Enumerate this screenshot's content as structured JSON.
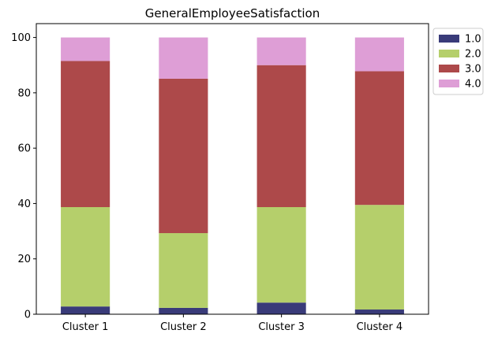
{
  "chart_data": {
    "type": "bar",
    "stacked": true,
    "title": "GeneralEmployeeSatisfaction",
    "xlabel": "",
    "ylabel": "",
    "categories": [
      "Cluster 1",
      "Cluster 2",
      "Cluster 3",
      "Cluster 4"
    ],
    "ylim": [
      0,
      105
    ],
    "yticks": [
      0,
      20,
      40,
      60,
      80,
      100
    ],
    "grid": false,
    "legend_position": "outside-top-right",
    "series": [
      {
        "name": "1.0",
        "color": "#393b79",
        "values": [
          2.8,
          2.3,
          4.2,
          1.7
        ]
      },
      {
        "name": "2.0",
        "color": "#b5cf6b",
        "values": [
          35.9,
          27.0,
          34.5,
          37.8
        ]
      },
      {
        "name": "3.0",
        "color": "#ad494a",
        "values": [
          52.8,
          55.8,
          51.3,
          48.3
        ]
      },
      {
        "name": "4.0",
        "color": "#de9ed6",
        "values": [
          8.5,
          14.9,
          10.0,
          12.2
        ]
      }
    ]
  }
}
